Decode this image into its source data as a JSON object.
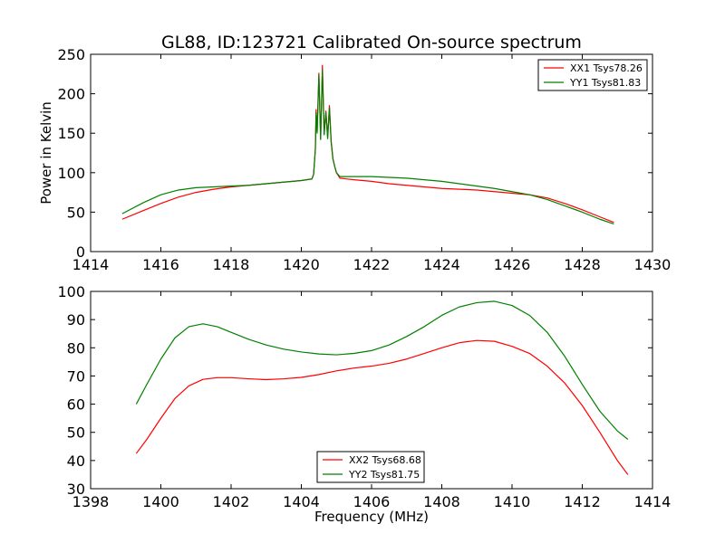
{
  "chart_data": [
    {
      "type": "line",
      "title": "GL88, ID:123721 Calibrated On-source spectrum",
      "xlabel": "",
      "ylabel": "Power in Kelvin",
      "xlim": [
        1414,
        1430
      ],
      "ylim": [
        0,
        250
      ],
      "xticks": [
        "1414",
        "1416",
        "1418",
        "1420",
        "1422",
        "1424",
        "1426",
        "1428",
        "1430"
      ],
      "yticks": [
        "0",
        "50",
        "100",
        "150",
        "200",
        "250"
      ],
      "legend": "top-right",
      "grid": false,
      "series": [
        {
          "name": "XX1 Tsys78.26",
          "color": "#ff0000",
          "x": [
            1414.9,
            1415.5,
            1416.0,
            1416.5,
            1417.0,
            1417.5,
            1418.0,
            1418.5,
            1419.0,
            1419.5,
            1420.0,
            1420.3,
            1420.35,
            1420.4,
            1420.42,
            1420.45,
            1420.5,
            1420.55,
            1420.6,
            1420.65,
            1420.7,
            1420.75,
            1420.8,
            1420.85,
            1420.9,
            1420.95,
            1421.0,
            1421.1,
            1421.5,
            1422.0,
            1422.5,
            1423.0,
            1423.5,
            1424.0,
            1424.5,
            1425.0,
            1425.5,
            1426.0,
            1426.5,
            1427.0,
            1427.5,
            1428.0,
            1428.5,
            1428.9
          ],
          "values": [
            41,
            52,
            61,
            69,
            75,
            79,
            82,
            84,
            86,
            88,
            90,
            92,
            98,
            130,
            180,
            152,
            226,
            143,
            236,
            150,
            178,
            145,
            185,
            140,
            118,
            108,
            100,
            93,
            91,
            89,
            86,
            84,
            82,
            80,
            79,
            78,
            76,
            74,
            72,
            68,
            61,
            53,
            44,
            37
          ]
        },
        {
          "name": "YY1 Tsys81.83",
          "color": "#008000",
          "x": [
            1414.9,
            1415.5,
            1416.0,
            1416.5,
            1417.0,
            1417.5,
            1418.0,
            1418.5,
            1419.0,
            1419.5,
            1420.0,
            1420.3,
            1420.35,
            1420.4,
            1420.42,
            1420.45,
            1420.5,
            1420.55,
            1420.6,
            1420.65,
            1420.7,
            1420.75,
            1420.8,
            1420.85,
            1420.9,
            1420.95,
            1421.0,
            1421.1,
            1421.5,
            1422.0,
            1422.5,
            1423.0,
            1423.5,
            1424.0,
            1424.5,
            1425.0,
            1425.5,
            1426.0,
            1426.5,
            1427.0,
            1427.5,
            1428.0,
            1428.5,
            1428.9
          ],
          "values": [
            48,
            62,
            72,
            78,
            81,
            82,
            83,
            84,
            86,
            88,
            90,
            92,
            98,
            130,
            176,
            150,
            224,
            142,
            230,
            148,
            176,
            143,
            182,
            138,
            117,
            108,
            100,
            95,
            95,
            95,
            94,
            93,
            91,
            89,
            86,
            83,
            80,
            76,
            72,
            66,
            58,
            50,
            41,
            35
          ]
        }
      ]
    },
    {
      "type": "line",
      "title": "",
      "xlabel": "Frequency (MHz)",
      "ylabel": "",
      "xlim": [
        1398,
        1414
      ],
      "ylim": [
        30,
        100
      ],
      "xticks": [
        "1398",
        "1400",
        "1402",
        "1404",
        "1406",
        "1408",
        "1410",
        "1412",
        "1414"
      ],
      "yticks": [
        "30",
        "40",
        "50",
        "60",
        "70",
        "80",
        "90",
        "100"
      ],
      "legend": "bottom-center",
      "grid": false,
      "series": [
        {
          "name": "XX2 Tsys68.68",
          "color": "#ff0000",
          "x": [
            1399.3,
            1399.6,
            1400.0,
            1400.4,
            1400.8,
            1401.2,
            1401.6,
            1402.0,
            1402.5,
            1403.0,
            1403.5,
            1404.0,
            1404.5,
            1405.0,
            1405.5,
            1406.0,
            1406.5,
            1407.0,
            1407.5,
            1408.0,
            1408.5,
            1409.0,
            1409.5,
            1410.0,
            1410.5,
            1411.0,
            1411.5,
            1412.0,
            1412.5,
            1413.0,
            1413.3
          ],
          "values": [
            42.5,
            47.5,
            55,
            62,
            66.5,
            68.8,
            69.4,
            69.4,
            69.0,
            68.7,
            69.0,
            69.5,
            70.5,
            71.8,
            72.8,
            73.5,
            74.5,
            76.0,
            78.0,
            80.0,
            81.8,
            82.6,
            82.3,
            80.5,
            78.0,
            73.5,
            67.5,
            59.5,
            50.0,
            40.0,
            35.0
          ]
        },
        {
          "name": "YY2 Tsys81.75",
          "color": "#008000",
          "x": [
            1399.3,
            1399.6,
            1400.0,
            1400.4,
            1400.8,
            1401.2,
            1401.6,
            1402.0,
            1402.5,
            1403.0,
            1403.5,
            1404.0,
            1404.5,
            1405.0,
            1405.5,
            1406.0,
            1406.5,
            1407.0,
            1407.5,
            1408.0,
            1408.5,
            1409.0,
            1409.5,
            1410.0,
            1410.5,
            1411.0,
            1411.5,
            1412.0,
            1412.5,
            1413.0,
            1413.3
          ],
          "values": [
            60,
            67,
            76,
            83.5,
            87.5,
            88.5,
            87.5,
            85.5,
            83.0,
            81.0,
            79.5,
            78.5,
            77.8,
            77.5,
            78.0,
            79.0,
            81.0,
            84.0,
            87.5,
            91.5,
            94.5,
            96.0,
            96.5,
            95.0,
            91.5,
            85.5,
            77.0,
            67.0,
            57.5,
            50.5,
            47.5
          ]
        }
      ]
    }
  ]
}
